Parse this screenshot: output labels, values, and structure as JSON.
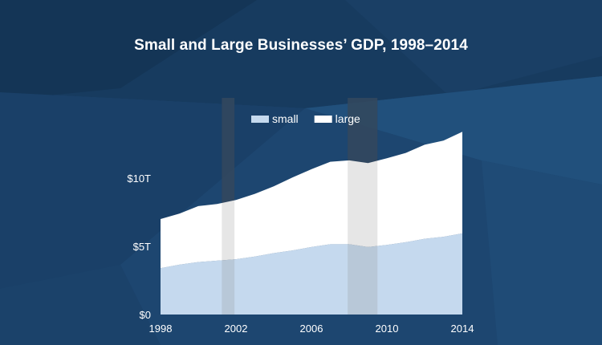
{
  "chart_data": {
    "type": "area",
    "stacked": true,
    "title": "Small and Large Businesses’ GDP, 1998–2014",
    "xlabel": "",
    "ylabel": "",
    "x": [
      1998,
      1999,
      2000,
      2001,
      2002,
      2003,
      2004,
      2005,
      2006,
      2007,
      2008,
      2009,
      2010,
      2011,
      2012,
      2013,
      2014
    ],
    "xlim": [
      1998,
      2014
    ],
    "ylim": [
      0,
      15
    ],
    "x_ticks": [
      1998,
      2002,
      2006,
      2010,
      2014
    ],
    "x_tick_labels": [
      "1998",
      "2002",
      "2006",
      "2010",
      "2014"
    ],
    "y_ticks": [
      0,
      5,
      10
    ],
    "y_tick_labels": [
      "$0",
      "$5T",
      "$10T"
    ],
    "series": [
      {
        "name": "small",
        "color": "#c5d9ee",
        "values": [
          3.4,
          3.65,
          3.85,
          3.95,
          4.05,
          4.25,
          4.5,
          4.7,
          4.95,
          5.15,
          5.15,
          4.95,
          5.1,
          5.3,
          5.55,
          5.7,
          5.95
        ]
      },
      {
        "name": "large",
        "color": "#ffffff",
        "values": [
          3.6,
          3.75,
          4.1,
          4.15,
          4.35,
          4.6,
          4.9,
          5.35,
          5.7,
          6.05,
          6.15,
          6.15,
          6.35,
          6.55,
          6.9,
          7.05,
          7.45
        ]
      }
    ],
    "recession_bands": [
      [
        2001.25,
        2001.92
      ],
      [
        2007.92,
        2009.5
      ]
    ],
    "legend": "top-center",
    "grid": false
  },
  "colors": {
    "background": "#1d4670",
    "band": "#8c8c8c",
    "text": "#ffffff"
  }
}
